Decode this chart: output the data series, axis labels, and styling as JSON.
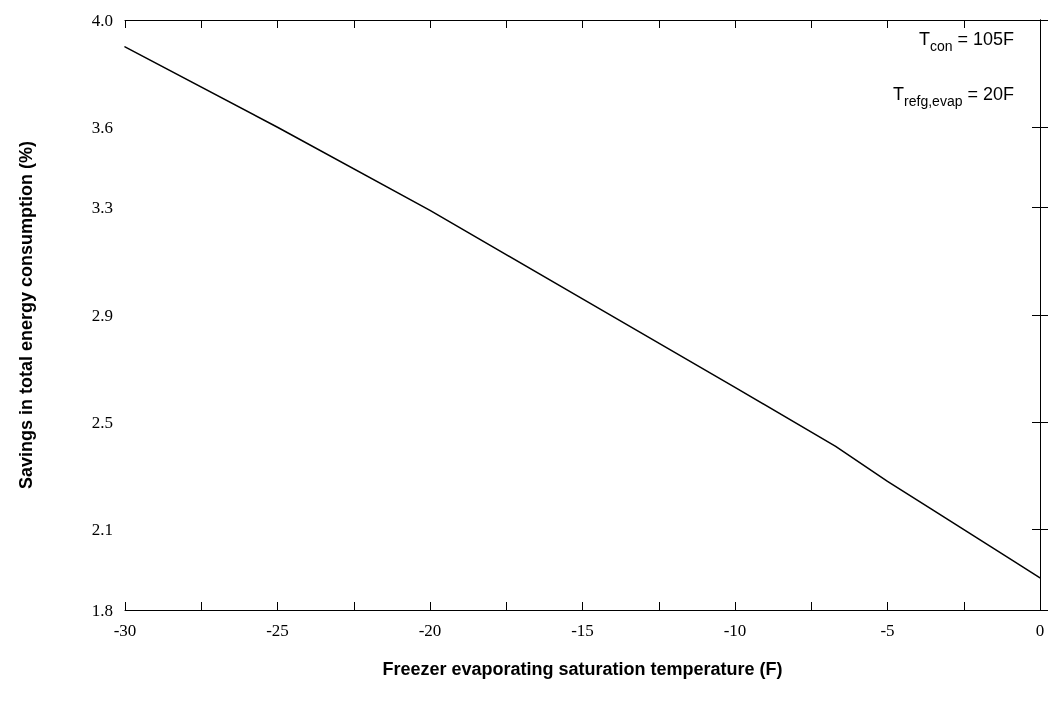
{
  "chart_data": {
    "type": "line",
    "xlabel": "Freezer evaporating saturation temperature (F)",
    "ylabel": "Savings in total energy consumption (%)",
    "x": [
      -30,
      -25,
      -20,
      -15,
      -10,
      -6.7,
      -5,
      0
    ],
    "series": [
      {
        "color": "#000000",
        "values": [
          3.9,
          3.6,
          3.29,
          2.96,
          2.63,
          2.41,
          2.28,
          1.92
        ]
      }
    ],
    "xlim": [
      -30,
      0
    ],
    "xticks": [
      -30,
      {
        "value": -27.5,
        "label": null
      },
      -25,
      {
        "value": -22.5,
        "label": null
      },
      -20,
      {
        "value": -17.5,
        "label": null
      },
      -15,
      {
        "value": -12.5,
        "label": null
      },
      -10,
      {
        "value": -7.5,
        "label": null
      },
      -5,
      {
        "value": -2.5,
        "label": null
      },
      0
    ],
    "ylim": [
      1.8,
      4.0
    ],
    "yticks": [
      1.8,
      2.1,
      2.5,
      2.9,
      3.3,
      3.6,
      {
        "value": 4.0,
        "label": "4.0"
      }
    ],
    "grid": false,
    "marker": "none",
    "line_style": "solid",
    "annotations": [
      {
        "text": "T$_{con}$ = 105F"
      },
      {
        "text": "T$_{refg,evap}$ = 20F"
      }
    ]
  }
}
